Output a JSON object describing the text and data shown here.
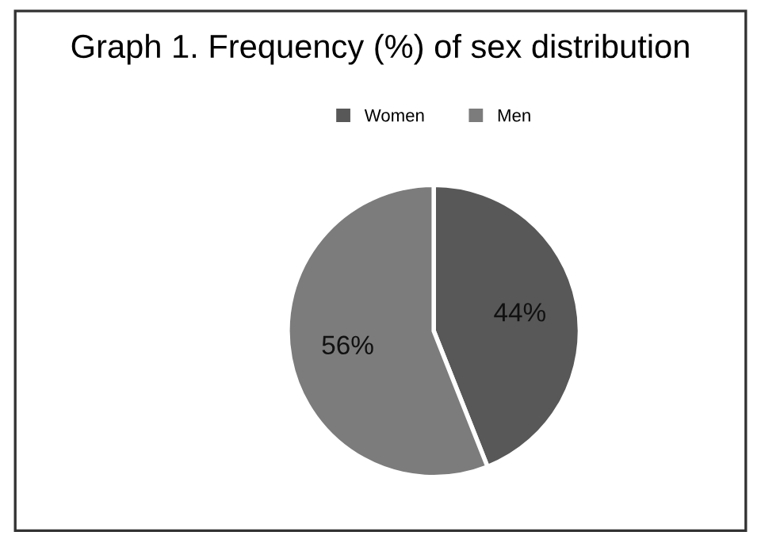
{
  "chart_data": {
    "type": "pie",
    "title": "Graph 1. Frequency (%) of sex distribution",
    "categories": [
      "Women",
      "Men"
    ],
    "values": [
      44,
      56
    ],
    "colors": [
      "#585858",
      "#7c7c7c"
    ],
    "value_labels": [
      "44%",
      "56%"
    ],
    "legend": "top"
  }
}
